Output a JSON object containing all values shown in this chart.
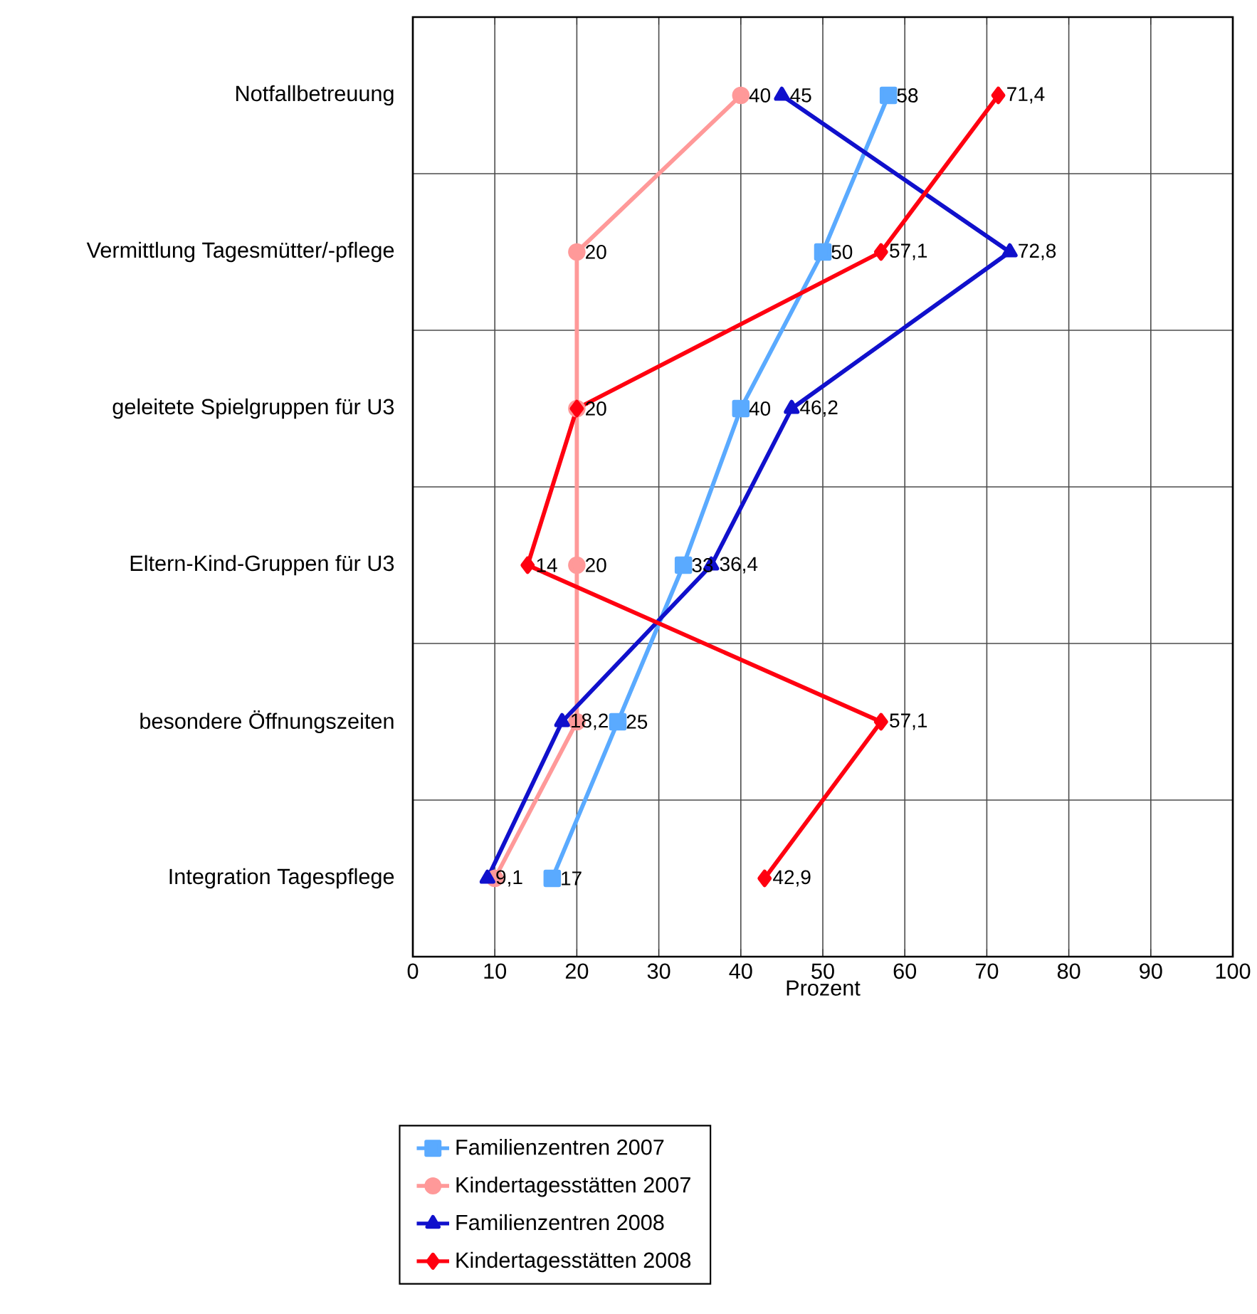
{
  "chart_data": {
    "type": "line",
    "orientation": "horizontal",
    "xlabel": "Prozent",
    "categories": [
      "Notfallbetreuung",
      "Vermittlung Tagesmütter/-pflege",
      "geleitete Spielgruppen für U3",
      "Eltern-Kind-Gruppen für U3",
      "besondere Öffnungszeiten",
      "Integration Tagespflege"
    ],
    "xlim": [
      0,
      100
    ],
    "xticks": [
      0,
      10,
      20,
      30,
      40,
      50,
      60,
      70,
      80,
      90,
      100
    ],
    "grid": true,
    "legend": "bottom",
    "series": [
      {
        "name": "Familienzentren 2007",
        "color": "#5aaaff",
        "marker": "square",
        "values": [
          58,
          50,
          40,
          33,
          25,
          17
        ],
        "value_labels": [
          "58",
          "50",
          "40",
          "33",
          "25",
          "17"
        ]
      },
      {
        "name": "Kindertagesstätten 2007",
        "color": "#ff9999",
        "marker": "circle",
        "values": [
          40,
          20,
          20,
          20,
          20,
          10
        ],
        "value_labels": [
          "40",
          "20",
          "20",
          "20",
          null,
          null
        ]
      },
      {
        "name": "Familienzentren 2008",
        "color": "#1010cc",
        "marker": "triangle",
        "values": [
          45,
          72.8,
          46.2,
          36.4,
          18.2,
          9.1
        ],
        "value_labels": [
          "45",
          "72,8",
          "46,2",
          "36,4",
          "18,2",
          "9,1"
        ]
      },
      {
        "name": "Kindertagesstätten 2008",
        "color": "#ff0010",
        "marker": "diamond",
        "values": [
          71.4,
          57.1,
          20,
          14,
          57.1,
          42.9
        ],
        "value_labels": [
          "71,4",
          "57,1",
          null,
          "14",
          "57,1",
          "42,9"
        ]
      }
    ]
  }
}
